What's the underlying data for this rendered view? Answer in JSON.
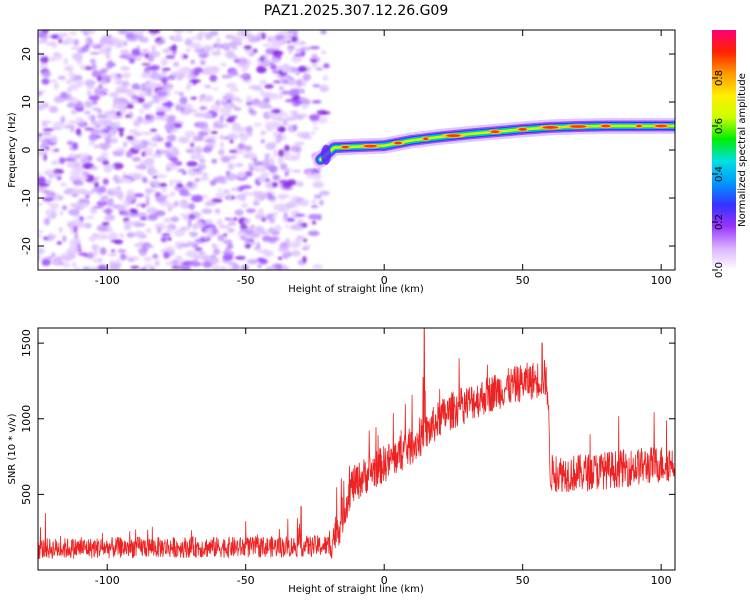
{
  "title": "PAZ1.2025.307.12.26.G09",
  "chart_data": [
    {
      "type": "heatmap",
      "xlabel": "Height of straight line (km)",
      "ylabel": "Frequency (Hz)",
      "xlim": [
        -125,
        105
      ],
      "ylim": [
        -25,
        25
      ],
      "xticks": [
        -100,
        -50,
        0,
        50,
        100
      ],
      "yticks": [
        -20,
        -10,
        0,
        10,
        20
      ],
      "xtick_labels": [
        "-100",
        "-50",
        "0",
        "50",
        "100"
      ],
      "ytick_labels": [
        "-20",
        "-10",
        "0",
        "10",
        "20"
      ],
      "colorbar": {
        "label": "Normalized spectral amplitude",
        "range": [
          0,
          1
        ],
        "ticks": [
          0,
          0.2,
          0.4,
          0.6,
          0.8
        ],
        "tick_labels": [
          "0.0",
          "0.2",
          "0.4",
          "0.6",
          "0.8"
        ],
        "colors": [
          "#ffffff",
          "#d9b3ff",
          "#9933ff",
          "#3333ff",
          "#0099ff",
          "#00e0e0",
          "#00ee00",
          "#ccff00",
          "#ffee00",
          "#ff9900",
          "#ff2200",
          "#ff0077"
        ]
      },
      "noise_region_x": [
        -125,
        -23
      ],
      "ridge": {
        "x": [
          -23,
          -18,
          -10,
          0,
          10,
          20,
          30,
          40,
          50,
          60,
          70,
          80,
          90,
          100,
          105
        ],
        "freq": [
          -2,
          0.5,
          0.7,
          0.9,
          2.0,
          2.7,
          3.3,
          3.8,
          4.3,
          4.7,
          4.9,
          5.0,
          5.0,
          5.0,
          5.0
        ]
      }
    },
    {
      "type": "line",
      "xlabel": "Height of straight line (km)",
      "ylabel": "SNR (10 * v/v)",
      "xlim": [
        -125,
        105
      ],
      "ylim": [
        0,
        1600
      ],
      "xticks": [
        -100,
        -50,
        0,
        50,
        100
      ],
      "yticks": [
        500,
        1000,
        1500
      ],
      "xtick_labels": [
        "-100",
        "-50",
        "0",
        "50",
        "100"
      ],
      "ytick_labels": [
        "500",
        "1000",
        "1500"
      ],
      "color": "#ee2222",
      "trend": {
        "x": [
          -125,
          -90,
          -50,
          -20,
          -16,
          -12,
          -5,
          0,
          5,
          10,
          15,
          20,
          25,
          30,
          40,
          50,
          58,
          59,
          60,
          70,
          80,
          90,
          100,
          105
        ],
        "y": [
          140,
          150,
          150,
          160,
          300,
          550,
          650,
          700,
          760,
          820,
          900,
          1000,
          1060,
          1100,
          1180,
          1240,
          1270,
          1200,
          640,
          640,
          660,
          680,
          700,
          710
        ]
      },
      "noise_amplitude": 70,
      "peaks": [
        {
          "x": 14.5,
          "y": 1600
        },
        {
          "x": -30,
          "y": 420
        },
        {
          "x": 57,
          "y": 1500
        }
      ]
    }
  ]
}
